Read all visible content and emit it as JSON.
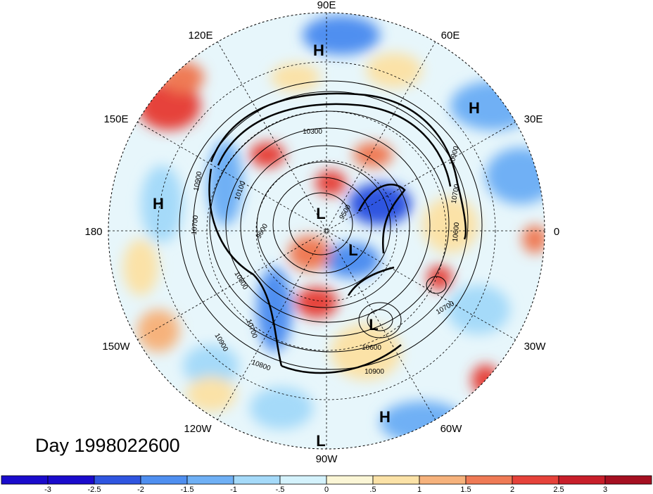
{
  "date_label": "Day 1998022600",
  "longitude_labels": [
    "90E",
    "60E",
    "30E",
    "0",
    "30W",
    "60W",
    "90W",
    "120W",
    "150W",
    "180",
    "150E",
    "120E"
  ],
  "pressure_centers": [
    {
      "type": "H"
    },
    {
      "type": "H"
    },
    {
      "type": "H"
    },
    {
      "type": "H"
    },
    {
      "type": "L"
    },
    {
      "type": "L"
    },
    {
      "type": "L"
    },
    {
      "type": "L"
    }
  ],
  "contour_labels": [
    "10300",
    "10900",
    "10700",
    "10600",
    "10900",
    "10100",
    "9600",
    "10700",
    "9500",
    "10700",
    "10800",
    "10900",
    "10600",
    "10900",
    "10700",
    "10800"
  ],
  "colorbar": {
    "ticks": [
      "-3",
      "-2.5",
      "-2",
      "-1.5",
      "-1",
      "-.5",
      "0",
      ".5",
      "1",
      "1.5",
      "2",
      "2.5",
      "3"
    ],
    "colors": [
      "#1a0bcc",
      "#2f55e0",
      "#4f8ff0",
      "#6fb0f5",
      "#a5daf9",
      "#d4f2fc",
      "#fbf6d6",
      "#fbe2a7",
      "#f6b27c",
      "#ef7a55",
      "#e6423a",
      "#c81e2a",
      "#a50f21"
    ]
  }
}
